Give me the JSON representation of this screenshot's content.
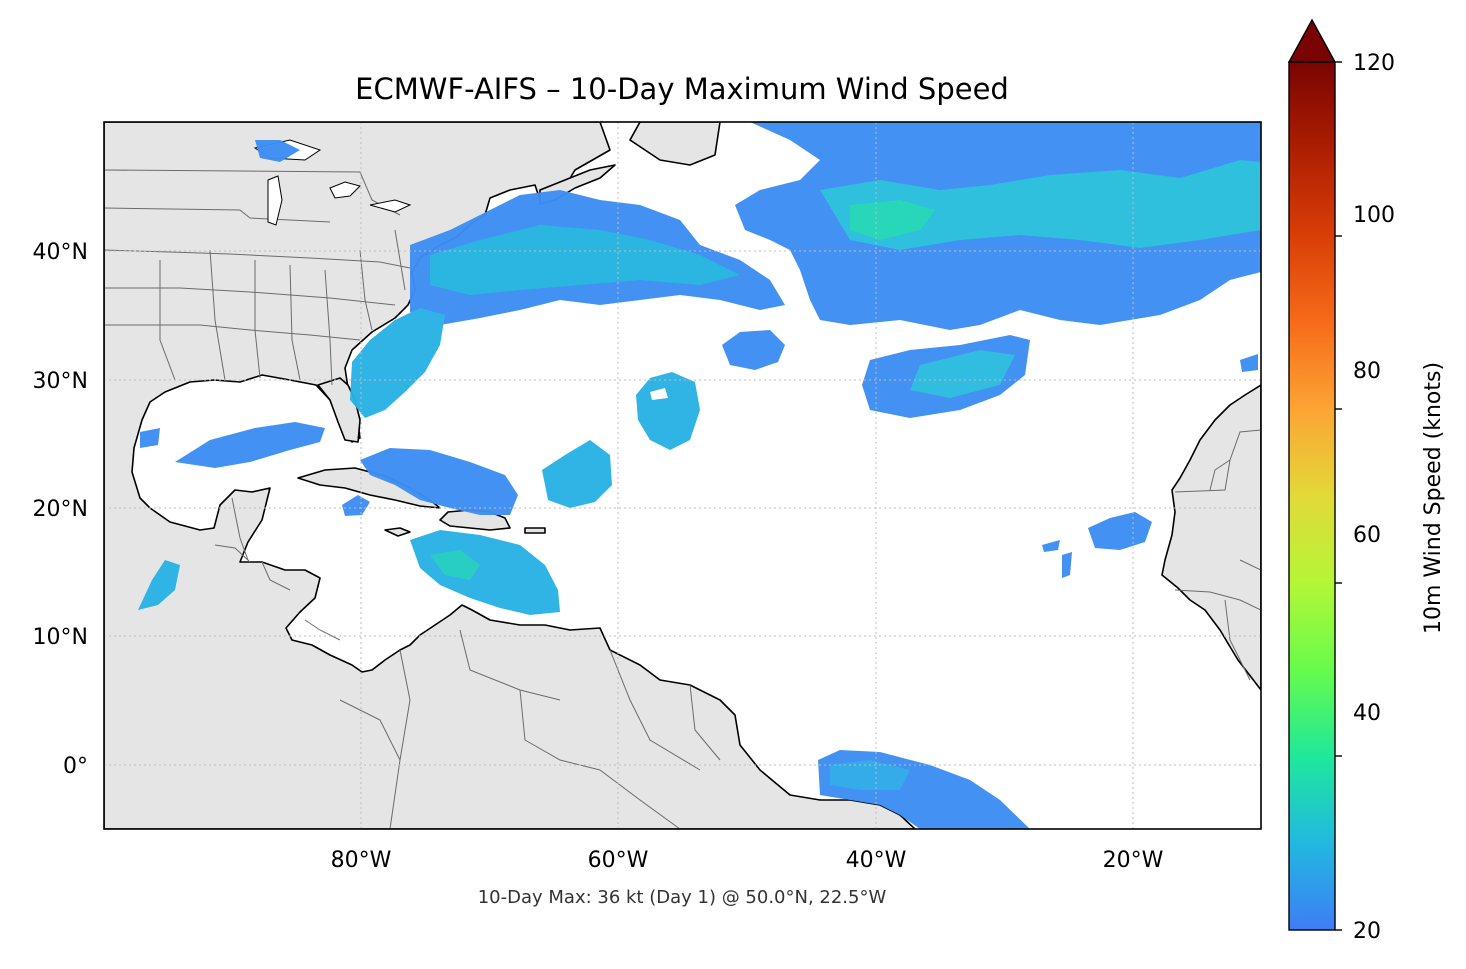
{
  "title": "ECMWF-AIFS – 10-Day Maximum Wind Speed",
  "footer": "10-Day Max: 36 kt (Day 1) @ 50.0°N, 22.5°W",
  "map": {
    "lon_range": [
      -100,
      -10
    ],
    "lat_range": [
      -5,
      50
    ],
    "lon_ticks": [
      "80°W",
      "60°W",
      "40°W",
      "20°W"
    ],
    "lat_ticks": [
      "40°N",
      "30°N",
      "20°N",
      "10°N",
      "0°"
    ],
    "gridlines": true,
    "land_color": "#e5e5e5",
    "ocean_color": "#ffffff",
    "regions": [
      "continental-us",
      "central-america",
      "south-america",
      "west-africa",
      "canada-maritimes"
    ]
  },
  "colorbar": {
    "label": "10m Wind Speed (knots)",
    "range": [
      20,
      120
    ],
    "ticks": [
      "20",
      "40",
      "60",
      "80",
      "100",
      "120"
    ],
    "extend": "max",
    "colormap": "turbo"
  },
  "wind_swaths": [
    {
      "region": "north-atlantic-storm-track",
      "max_kt": 36
    },
    {
      "region": "central-atlantic-band",
      "max_kt": 30
    },
    {
      "region": "us-east-coast",
      "max_kt": 29
    },
    {
      "region": "gulf-of-mexico",
      "max_kt": 22
    },
    {
      "region": "bahamas-caribbean",
      "max_kt": 29
    },
    {
      "region": "eastern-pacific",
      "max_kt": 28
    },
    {
      "region": "tropical-atlantic-isles",
      "max_kt": 27
    },
    {
      "region": "equatorial-atlantic",
      "max_kt": 23
    }
  ]
}
